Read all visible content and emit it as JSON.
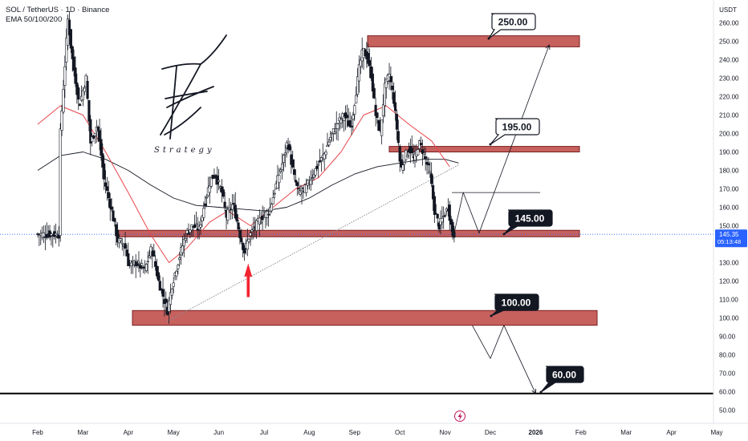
{
  "header": {
    "symbol_line": "SOL / TetherUS · 1D · Binance",
    "ema_line": "EMA 50/100/200"
  },
  "brand": {
    "mark": "Z",
    "word": "Strategy"
  },
  "colors": {
    "up_candle": "#ffffff",
    "down_candle": "#131722",
    "zone_fill": "#c0504d",
    "zone_border": "#7a1f1f",
    "ema50": "#e8454b",
    "ema200": "#131722",
    "trendline": "#8a8f98",
    "arrow": "#f2242f",
    "price_label_bg": "#131722",
    "lightning": "#c2185b"
  },
  "chart_data": {
    "type": "candlestick",
    "title": "SOL / TetherUS · 1D · Binance",
    "indicators": [
      "EMA 50",
      "EMA 200"
    ],
    "price_axis": {
      "unit": "USDT",
      "range": [
        45,
        268
      ],
      "ticks": [
        "260.00",
        "250.00",
        "240.00",
        "230.00",
        "220.00",
        "210.00",
        "200.00",
        "190.00",
        "180.00",
        "170.00",
        "160.00",
        "150.00",
        "140.00",
        "130.00",
        "120.00",
        "110.00",
        "100.00",
        "90.00",
        "80.00",
        "70.00",
        "60.00",
        "50.00"
      ],
      "last_price": "145.35",
      "countdown": "05:13:48"
    },
    "time_axis": [
      "Feb",
      "Mar",
      "Apr",
      "May",
      "Jun",
      "Jul",
      "Aug",
      "Sep",
      "Oct",
      "Nov",
      "Dec",
      "2026",
      "Feb",
      "Mar",
      "Apr",
      "May"
    ],
    "grid": false,
    "zones": [
      {
        "label": "250.00",
        "low": 247,
        "high": 253,
        "from": "Sep",
        "to": "Feb 2026"
      },
      {
        "label": "195.00",
        "low": 190,
        "high": 193,
        "from": "Oct",
        "to": "Feb 2026"
      },
      {
        "label": "145.00",
        "low": 144,
        "high": 147.5,
        "from": "Apr",
        "to": "Feb 2026"
      },
      {
        "label": "100.00",
        "low": 96,
        "high": 104,
        "from": "Apr",
        "to": "Feb 2026"
      }
    ],
    "levels": [
      {
        "label": "60.00",
        "value": 59
      }
    ],
    "price_labels": [
      "250.00",
      "195.00",
      "145.00",
      "100.00",
      "60.00"
    ],
    "ohlc_path": [
      {
        "t": 0.5,
        "p": 188
      },
      {
        "t": 0.6,
        "p": 225
      },
      {
        "t": 0.7,
        "p": 262
      },
      {
        "t": 0.8,
        "p": 240
      },
      {
        "t": 0.95,
        "p": 215
      },
      {
        "t": 1.1,
        "p": 230
      },
      {
        "t": 1.2,
        "p": 195
      },
      {
        "t": 1.35,
        "p": 205
      },
      {
        "t": 1.5,
        "p": 175
      },
      {
        "t": 1.65,
        "p": 160
      },
      {
        "t": 1.8,
        "p": 142
      },
      {
        "t": 1.95,
        "p": 140
      },
      {
        "t": 2.05,
        "p": 128
      },
      {
        "t": 2.2,
        "p": 130
      },
      {
        "t": 2.4,
        "p": 126
      },
      {
        "t": 2.55,
        "p": 138
      },
      {
        "t": 2.7,
        "p": 120
      },
      {
        "t": 2.8,
        "p": 112
      },
      {
        "t": 2.9,
        "p": 104
      },
      {
        "t": 3.0,
        "p": 118
      },
      {
        "t": 3.15,
        "p": 132
      },
      {
        "t": 3.3,
        "p": 145
      },
      {
        "t": 3.45,
        "p": 150
      },
      {
        "t": 3.6,
        "p": 148
      },
      {
        "t": 3.7,
        "p": 160
      },
      {
        "t": 3.85,
        "p": 175
      },
      {
        "t": 3.95,
        "p": 178
      },
      {
        "t": 4.1,
        "p": 168
      },
      {
        "t": 4.2,
        "p": 155
      },
      {
        "t": 4.35,
        "p": 162
      },
      {
        "t": 4.5,
        "p": 145
      },
      {
        "t": 4.6,
        "p": 136
      },
      {
        "t": 4.7,
        "p": 144
      },
      {
        "t": 4.85,
        "p": 150
      },
      {
        "t": 5.0,
        "p": 155
      },
      {
        "t": 5.15,
        "p": 158
      },
      {
        "t": 5.3,
        "p": 172
      },
      {
        "t": 5.45,
        "p": 185
      },
      {
        "t": 5.55,
        "p": 196
      },
      {
        "t": 5.7,
        "p": 176
      },
      {
        "t": 5.8,
        "p": 168
      },
      {
        "t": 5.95,
        "p": 170
      },
      {
        "t": 6.05,
        "p": 175
      },
      {
        "t": 6.2,
        "p": 182
      },
      {
        "t": 6.35,
        "p": 188
      },
      {
        "t": 6.5,
        "p": 198
      },
      {
        "t": 6.65,
        "p": 205
      },
      {
        "t": 6.8,
        "p": 210
      },
      {
        "t": 6.95,
        "p": 203
      },
      {
        "t": 7.05,
        "p": 220
      },
      {
        "t": 7.15,
        "p": 238
      },
      {
        "t": 7.22,
        "p": 245
      },
      {
        "t": 7.3,
        "p": 242
      },
      {
        "t": 7.4,
        "p": 232
      },
      {
        "t": 7.5,
        "p": 210
      },
      {
        "t": 7.6,
        "p": 200
      },
      {
        "t": 7.7,
        "p": 225
      },
      {
        "t": 7.8,
        "p": 232
      },
      {
        "t": 7.9,
        "p": 218
      },
      {
        "t": 8.0,
        "p": 195
      },
      {
        "t": 8.05,
        "p": 180
      },
      {
        "t": 8.15,
        "p": 188
      },
      {
        "t": 8.25,
        "p": 192
      },
      {
        "t": 8.35,
        "p": 185
      },
      {
        "t": 8.45,
        "p": 195
      },
      {
        "t": 8.55,
        "p": 190
      },
      {
        "t": 8.7,
        "p": 178
      },
      {
        "t": 8.8,
        "p": 158
      },
      {
        "t": 8.9,
        "p": 150
      },
      {
        "t": 9.0,
        "p": 155
      },
      {
        "t": 9.1,
        "p": 160
      },
      {
        "t": 9.2,
        "p": 145.35
      }
    ],
    "ema50": [
      {
        "t": 0.0,
        "p": 205
      },
      {
        "t": 0.5,
        "p": 215
      },
      {
        "t": 1.0,
        "p": 210
      },
      {
        "t": 1.5,
        "p": 190
      },
      {
        "t": 2.0,
        "p": 168
      },
      {
        "t": 2.5,
        "p": 145
      },
      {
        "t": 2.9,
        "p": 130
      },
      {
        "t": 3.3,
        "p": 138
      },
      {
        "t": 3.8,
        "p": 152
      },
      {
        "t": 4.2,
        "p": 158
      },
      {
        "t": 4.7,
        "p": 150
      },
      {
        "t": 5.2,
        "p": 160
      },
      {
        "t": 5.7,
        "p": 170
      },
      {
        "t": 6.2,
        "p": 176
      },
      {
        "t": 6.7,
        "p": 190
      },
      {
        "t": 7.2,
        "p": 210
      },
      {
        "t": 7.7,
        "p": 215
      },
      {
        "t": 8.2,
        "p": 205
      },
      {
        "t": 8.7,
        "p": 196
      },
      {
        "t": 9.1,
        "p": 182
      }
    ],
    "ema200": [
      {
        "t": 0.0,
        "p": 180
      },
      {
        "t": 0.5,
        "p": 188
      },
      {
        "t": 1.0,
        "p": 190
      },
      {
        "t": 1.5,
        "p": 186
      },
      {
        "t": 2.0,
        "p": 180
      },
      {
        "t": 2.5,
        "p": 172
      },
      {
        "t": 3.0,
        "p": 165
      },
      {
        "t": 3.5,
        "p": 161
      },
      {
        "t": 4.0,
        "p": 160
      },
      {
        "t": 4.5,
        "p": 159
      },
      {
        "t": 5.0,
        "p": 158
      },
      {
        "t": 5.5,
        "p": 160
      },
      {
        "t": 6.0,
        "p": 165
      },
      {
        "t": 6.5,
        "p": 172
      },
      {
        "t": 7.0,
        "p": 178
      },
      {
        "t": 7.5,
        "p": 182
      },
      {
        "t": 8.0,
        "p": 184
      },
      {
        "t": 8.5,
        "p": 186
      },
      {
        "t": 9.0,
        "p": 186
      },
      {
        "t": 9.3,
        "p": 184
      }
    ],
    "trendline": {
      "from": {
        "t": 2.85,
        "p": 98
      },
      "to": {
        "t": 9.3,
        "p": 183
      }
    },
    "projection_up": [
      {
        "t": 9.2,
        "p": 146
      },
      {
        "t": 9.4,
        "p": 168
      },
      {
        "t": 9.75,
        "p": 146
      },
      {
        "t": 11.3,
        "p": 248
      }
    ],
    "projection_box": {
      "from": {
        "t": 9.15,
        "p": 168
      },
      "to": {
        "t": 11.1,
        "p": 168
      },
      "bottom": 146
    },
    "projection_down": [
      {
        "t": 9.6,
        "p": 96
      },
      {
        "t": 10.0,
        "p": 78
      },
      {
        "t": 10.3,
        "p": 96
      },
      {
        "t": 11.0,
        "p": 59
      }
    ],
    "annotation": {
      "type": "up-arrow",
      "t": 4.65,
      "p": 120
    }
  }
}
